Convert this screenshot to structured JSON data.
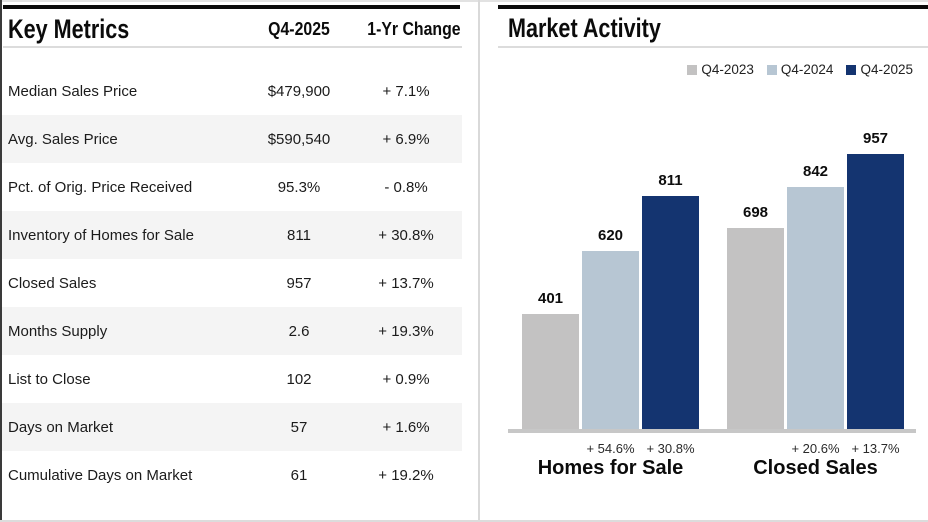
{
  "left_panel": {
    "title": "Key Metrics",
    "columns": [
      "Q4-2025",
      "1-Yr Change"
    ],
    "rows": [
      {
        "label": "Median Sales Price",
        "value": "$479,900",
        "change": "+ 7.1%"
      },
      {
        "label": "Avg. Sales Price",
        "value": "$590,540",
        "change": "+ 6.9%"
      },
      {
        "label": "Pct. of Orig. Price Received",
        "value": "95.3%",
        "change": "- 0.8%"
      },
      {
        "label": "Inventory of Homes for Sale",
        "value": "811",
        "change": "+ 30.8%"
      },
      {
        "label": "Closed Sales",
        "value": "957",
        "change": "+ 13.7%"
      },
      {
        "label": "Months Supply",
        "value": "2.6",
        "change": "+ 19.3%"
      },
      {
        "label": "List to Close",
        "value": "102",
        "change": "+ 0.9%"
      },
      {
        "label": "Days on Market",
        "value": "57",
        "change": "+ 1.6%"
      },
      {
        "label": "Cumulative Days on Market",
        "value": "61",
        "change": "+ 19.2%"
      }
    ]
  },
  "right_panel": {
    "title": "Market Activity"
  },
  "chart_data": {
    "type": "bar",
    "title": "Market Activity",
    "categories": [
      "Homes for Sale",
      "Closed Sales"
    ],
    "series": [
      {
        "name": "Q4-2023",
        "color": "#c3c2c2",
        "values": [
          401,
          698
        ]
      },
      {
        "name": "Q4-2024",
        "color": "#b7c6d3",
        "values": [
          620,
          842
        ]
      },
      {
        "name": "Q4-2025",
        "color": "#143470",
        "values": [
          811,
          957
        ]
      }
    ],
    "pct_changes": [
      [
        "+ 54.6%",
        "+ 30.8%"
      ],
      [
        "+ 20.6%",
        "+ 13.7%"
      ]
    ],
    "ylim": [
      0,
      1000
    ],
    "grid": false,
    "legend_position": "top-right",
    "colors": {
      "q4_2023": "#c3c2c2",
      "q4_2024": "#b7c6d3",
      "q4_2025": "#143470",
      "baseline": "#c7c7c7",
      "alt_row": "#f4f4f4"
    }
  }
}
